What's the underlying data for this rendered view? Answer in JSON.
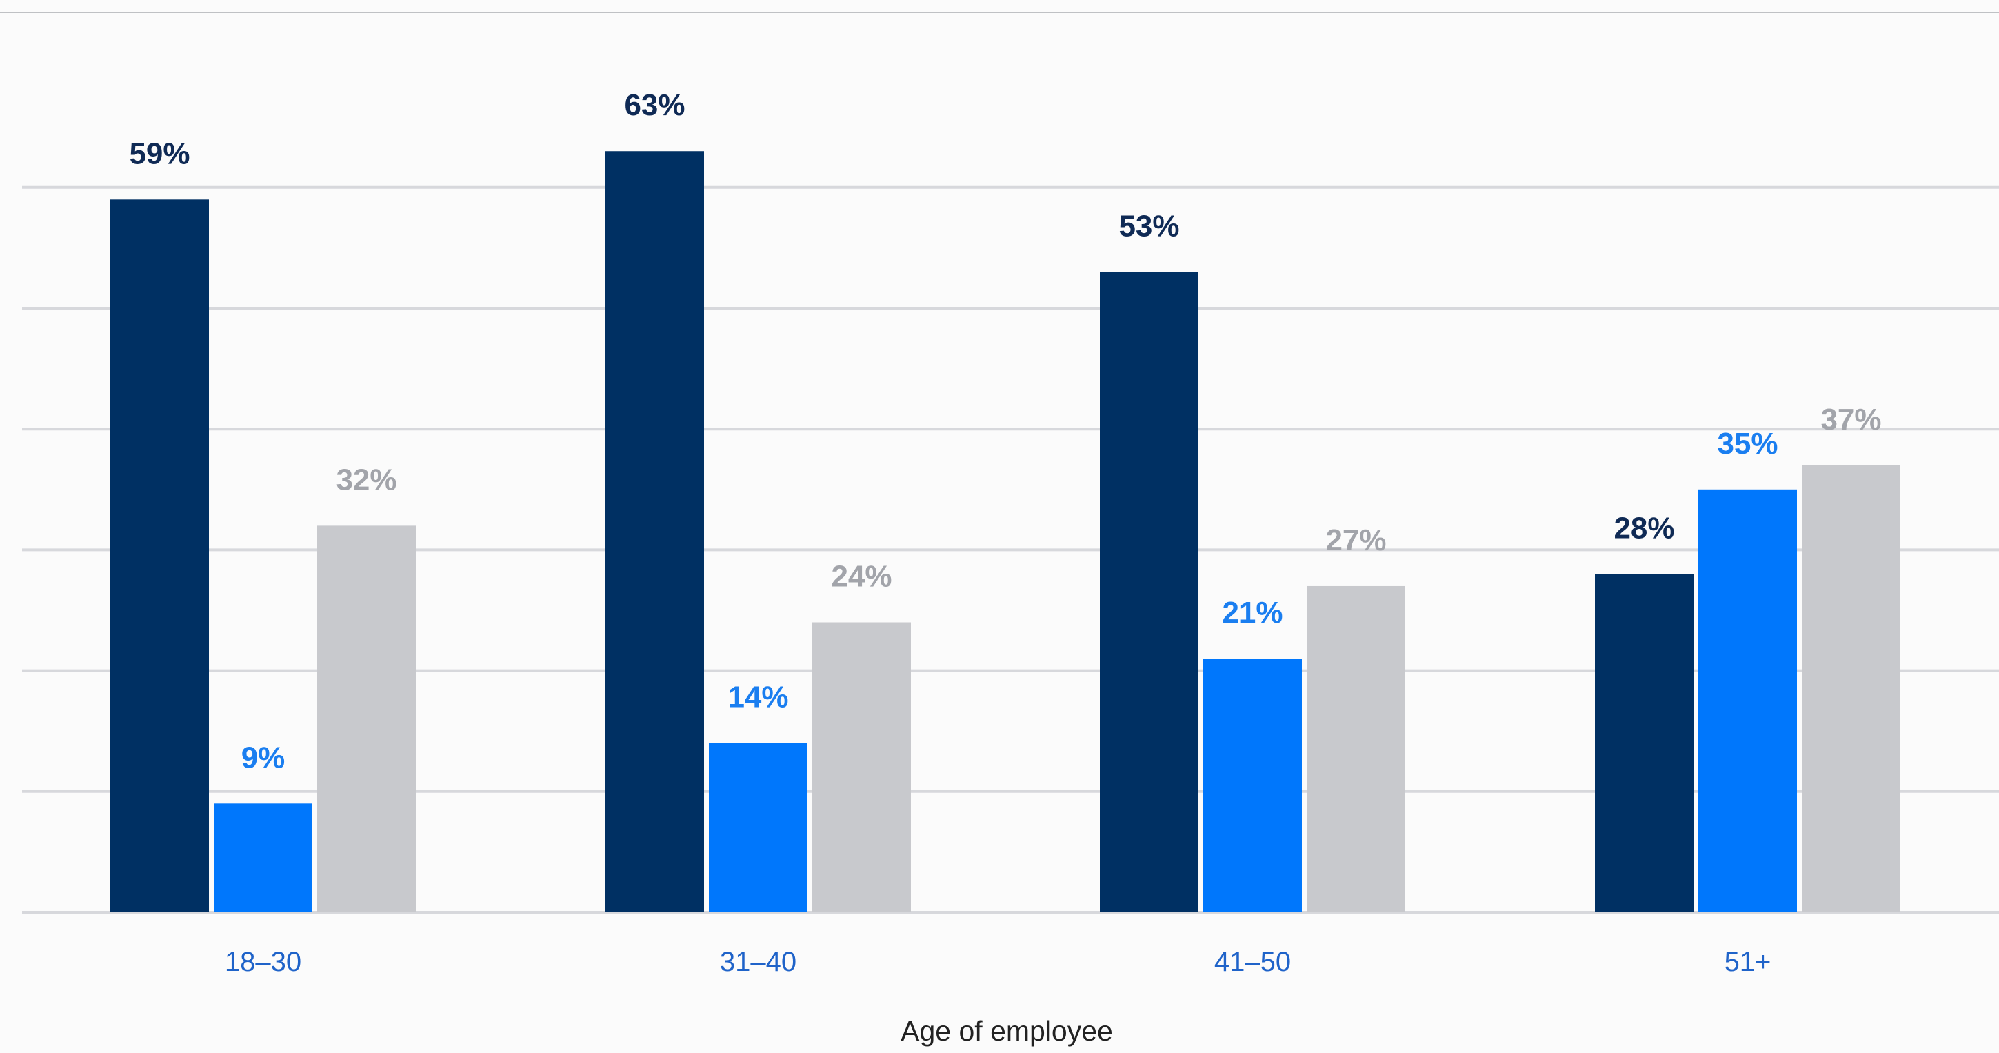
{
  "chart_data": {
    "type": "bar",
    "title": "",
    "xlabel": "Age of employee",
    "ylabel": "",
    "categories": [
      "18–30",
      "31–40",
      "41–50",
      "51+"
    ],
    "series": [
      {
        "values": [
          59,
          63,
          53,
          28
        ],
        "color": "#003063",
        "value_labels": [
          "59%",
          "63%",
          "53%",
          "28%"
        ]
      },
      {
        "values": [
          9,
          14,
          21,
          35
        ],
        "color": "#0077fc",
        "value_labels": [
          "9%",
          "14%",
          "21%",
          "35%"
        ]
      },
      {
        "values": [
          32,
          24,
          27,
          37
        ],
        "color": "#c8c9cd",
        "value_labels": [
          "32%",
          "24%",
          "27%",
          "37%"
        ]
      }
    ],
    "label_colors": [
      "#0f2a55",
      "#1a7ef0",
      "#a2a4aa"
    ],
    "ylim": [
      0,
      60
    ],
    "gridlines": [
      0,
      10,
      20,
      30,
      40,
      50,
      60
    ],
    "grid": true,
    "legend": "none"
  }
}
